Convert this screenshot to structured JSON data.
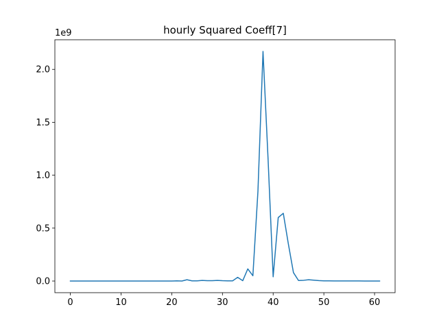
{
  "chart_data": {
    "type": "line",
    "title": "hourly Squared Coeff[7]",
    "xlabel": "",
    "ylabel": "",
    "y_offset_label": "1e9",
    "xlim": [
      -3.05,
      64.05
    ],
    "ylim": [
      -0.11,
      2.28
    ],
    "x_ticks": [
      0,
      10,
      20,
      30,
      40,
      50,
      60
    ],
    "x_tick_labels": [
      "0",
      "10",
      "20",
      "30",
      "40",
      "50",
      "60"
    ],
    "y_ticks": [
      0.0,
      0.5,
      1.0,
      1.5,
      2.0
    ],
    "y_tick_labels": [
      "0.0",
      "0.5",
      "1.0",
      "1.5",
      "2.0"
    ],
    "grid": false,
    "series": [
      {
        "color": "#1f77b4",
        "x": [
          0,
          1,
          2,
          3,
          4,
          5,
          6,
          7,
          8,
          9,
          10,
          11,
          12,
          13,
          14,
          15,
          16,
          17,
          18,
          19,
          20,
          21,
          22,
          23,
          24,
          25,
          26,
          27,
          28,
          29,
          30,
          31,
          32,
          33,
          34,
          35,
          36,
          37,
          38,
          39,
          40,
          41,
          42,
          43,
          44,
          45,
          46,
          47,
          48,
          49,
          50,
          51,
          52,
          53,
          54,
          55,
          56,
          57,
          58,
          59,
          60,
          61
        ],
        "y": [
          0.0,
          0.0,
          0.0,
          0.0,
          0.0,
          0.0,
          0.0,
          0.0,
          0.0,
          0.0,
          0.0,
          0.0,
          0.0,
          0.0,
          0.0,
          0.0,
          0.0,
          0.0,
          0.0,
          0.0,
          0.0,
          0.002,
          0.0,
          0.012,
          0.002,
          0.002,
          0.006,
          0.003,
          0.003,
          0.006,
          0.003,
          0.002,
          0.002,
          0.035,
          0.003,
          0.115,
          0.05,
          0.85,
          2.17,
          1.15,
          0.04,
          0.6,
          0.64,
          0.35,
          0.08,
          0.005,
          0.007,
          0.012,
          0.008,
          0.004,
          0.002,
          0.002,
          0.001,
          0.001,
          0.001,
          0.001,
          0.001,
          0.001,
          0.0,
          0.0,
          0.0,
          0.0
        ]
      }
    ]
  }
}
